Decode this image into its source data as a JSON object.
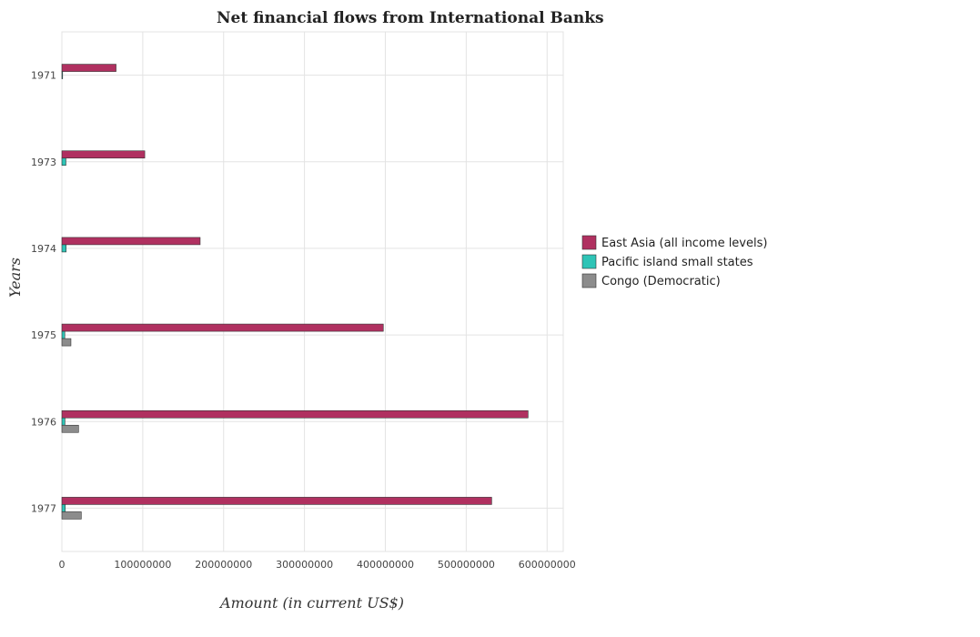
{
  "chart_data": {
    "type": "bar",
    "orientation": "horizontal",
    "title": "Net financial flows from International Banks",
    "xlabel": "Amount (in current US$)",
    "ylabel": "Years",
    "categories": [
      "1971",
      "1973",
      "1974",
      "1975",
      "1976",
      "1977"
    ],
    "xlim": [
      0,
      620000000
    ],
    "xticks": [
      0,
      100000000,
      200000000,
      300000000,
      400000000,
      500000000,
      600000000
    ],
    "xtick_labels": [
      "0",
      "100000000",
      "200000000",
      "300000000",
      "400000000",
      "500000000",
      "600000000"
    ],
    "grid": true,
    "legend_position": "right",
    "series": [
      {
        "name": "East Asia (all income levels)",
        "color": "#b03060",
        "values": [
          67000000,
          102500000,
          171000000,
          397500000,
          576500000,
          531500000
        ]
      },
      {
        "name": "Pacific island small states",
        "color": "#2ec4b6",
        "values": [
          700000,
          5000000,
          5300000,
          3600000,
          3800000,
          4200000
        ]
      },
      {
        "name": "Congo (Democratic)",
        "color": "#8c8c8c",
        "values": [
          0,
          0,
          0,
          11200000,
          20600000,
          24000000
        ]
      }
    ]
  }
}
